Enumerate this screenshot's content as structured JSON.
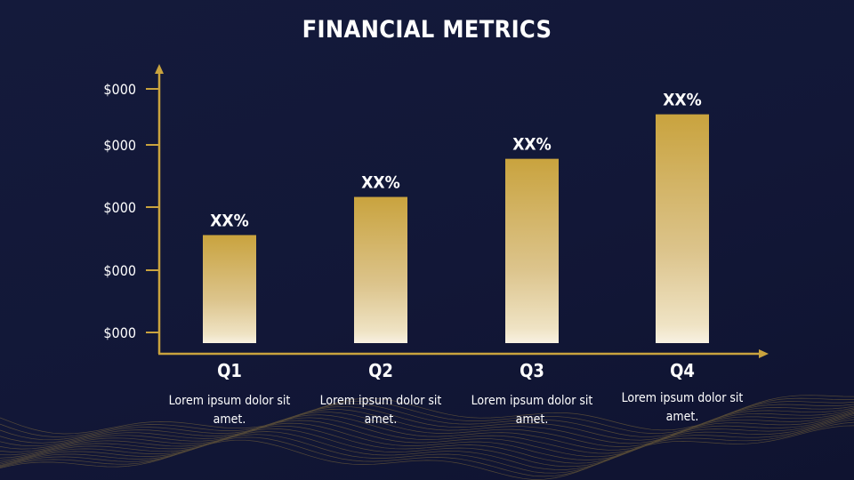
{
  "title": "FINANCIAL METRICS",
  "colors": {
    "background": "#131938",
    "accent": "#c9a33e",
    "bar_top": "#c9a33e",
    "bar_bottom": "#f6eedc"
  },
  "chart_data": {
    "type": "bar",
    "title": "FINANCIAL METRICS",
    "categories": [
      "Q1",
      "Q2",
      "Q3",
      "Q4"
    ],
    "values": [
      1.7,
      2.3,
      2.9,
      3.6
    ],
    "data_labels": [
      "XX%",
      "XX%",
      "XX%",
      "XX%"
    ],
    "y_tick_labels": [
      "$000",
      "$000",
      "$000",
      "$000",
      "$000"
    ],
    "y_tick_values": [
      0,
      1,
      2,
      3,
      4
    ],
    "ylim": [
      0,
      4
    ],
    "xlabel": "",
    "ylabel": "",
    "grid": false,
    "descriptions": [
      "Lorem ipsum dolor sit amet.",
      "Lorem ipsum dolor sit amet.",
      "Lorem ipsum dolor sit amet.",
      "Lorem ipsum dolor sit amet."
    ]
  }
}
